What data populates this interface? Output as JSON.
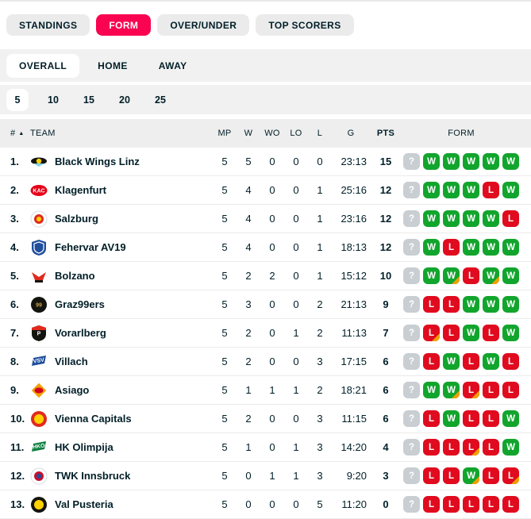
{
  "colors": {
    "accent": "#fa0350",
    "win": "#12a52d",
    "loss": "#e00b1e",
    "ot": "#f0a000",
    "unknown": "#c9ced3"
  },
  "main_tabs": [
    {
      "label": "STANDINGS",
      "active": false
    },
    {
      "label": "FORM",
      "active": true
    },
    {
      "label": "OVER/UNDER",
      "active": false
    },
    {
      "label": "TOP SCORERS",
      "active": false
    }
  ],
  "scope_tabs": [
    {
      "label": "OVERALL",
      "active": true
    },
    {
      "label": "HOME",
      "active": false
    },
    {
      "label": "AWAY",
      "active": false
    }
  ],
  "range_tabs": [
    {
      "label": "5",
      "active": true
    },
    {
      "label": "10",
      "active": false
    },
    {
      "label": "15",
      "active": false
    },
    {
      "label": "20",
      "active": false
    },
    {
      "label": "25",
      "active": false
    }
  ],
  "table": {
    "headers": {
      "rank": "#",
      "team": "TEAM",
      "mp": "MP",
      "w": "W",
      "wo": "WO",
      "lo": "LO",
      "l": "L",
      "g": "G",
      "pts": "PTS",
      "form": "FORM"
    },
    "sort_icon": "sort-asc-icon",
    "rows": [
      {
        "rank": "1.",
        "team": "Black Wings Linz",
        "mp": "5",
        "w": "5",
        "wo": "0",
        "lo": "0",
        "l": "0",
        "g": "23:13",
        "pts": "15",
        "logo": {
          "type": "wings",
          "colors": [
            "#14140f",
            "#ffd200",
            "#7fd4f0"
          ],
          "text": ""
        },
        "form": [
          {
            "r": "?"
          },
          {
            "r": "W"
          },
          {
            "r": "W"
          },
          {
            "r": "W"
          },
          {
            "r": "W"
          },
          {
            "r": "W"
          }
        ]
      },
      {
        "rank": "2.",
        "team": "Klagenfurt",
        "mp": "5",
        "w": "4",
        "wo": "0",
        "lo": "0",
        "l": "1",
        "g": "25:16",
        "pts": "12",
        "logo": {
          "type": "oval",
          "colors": [
            "#e60019",
            "#ffffff"
          ],
          "text": "KAC"
        },
        "form": [
          {
            "r": "?"
          },
          {
            "r": "W"
          },
          {
            "r": "W"
          },
          {
            "r": "W"
          },
          {
            "r": "L"
          },
          {
            "r": "W"
          }
        ]
      },
      {
        "rank": "3.",
        "team": "Salzburg",
        "mp": "5",
        "w": "4",
        "wo": "0",
        "lo": "0",
        "l": "1",
        "g": "23:16",
        "pts": "12",
        "logo": {
          "type": "circle",
          "colors": [
            "#ffffff",
            "#e02a1d",
            "#ffd200"
          ],
          "text": ""
        },
        "form": [
          {
            "r": "?"
          },
          {
            "r": "W"
          },
          {
            "r": "W"
          },
          {
            "r": "W"
          },
          {
            "r": "W"
          },
          {
            "r": "L"
          }
        ]
      },
      {
        "rank": "4.",
        "team": "Fehervar AV19",
        "mp": "5",
        "w": "4",
        "wo": "0",
        "lo": "0",
        "l": "1",
        "g": "18:13",
        "pts": "12",
        "logo": {
          "type": "shield",
          "colors": [
            "#1f4e9c",
            "#ffffff"
          ],
          "text": ""
        },
        "form": [
          {
            "r": "?"
          },
          {
            "r": "W"
          },
          {
            "r": "L"
          },
          {
            "r": "W"
          },
          {
            "r": "W"
          },
          {
            "r": "W"
          }
        ]
      },
      {
        "rank": "5.",
        "team": "Bolzano",
        "mp": "5",
        "w": "2",
        "wo": "2",
        "lo": "0",
        "l": "1",
        "g": "15:12",
        "pts": "10",
        "logo": {
          "type": "eagle",
          "colors": [
            "#e02a1d",
            "#14140f"
          ],
          "text": ""
        },
        "form": [
          {
            "r": "?"
          },
          {
            "r": "W"
          },
          {
            "r": "W",
            "ot": true
          },
          {
            "r": "L"
          },
          {
            "r": "W",
            "ot": true
          },
          {
            "r": "W"
          }
        ]
      },
      {
        "rank": "6.",
        "team": "Graz99ers",
        "mp": "5",
        "w": "3",
        "wo": "0",
        "lo": "0",
        "l": "2",
        "g": "21:13",
        "pts": "9",
        "logo": {
          "type": "circle",
          "colors": [
            "#14140f",
            "",
            ""
          ],
          "text": "99",
          "text_color": "#caa24a"
        },
        "form": [
          {
            "r": "?"
          },
          {
            "r": "L"
          },
          {
            "r": "L"
          },
          {
            "r": "W"
          },
          {
            "r": "W"
          },
          {
            "r": "W"
          }
        ]
      },
      {
        "rank": "7.",
        "team": "Vorarlberg",
        "mp": "5",
        "w": "2",
        "wo": "0",
        "lo": "1",
        "l": "2",
        "g": "11:13",
        "pts": "7",
        "logo": {
          "type": "shield",
          "colors": [
            "#14140f",
            "#ffffff"
          ],
          "text": "P",
          "stripe": "#e02a1d"
        },
        "form": [
          {
            "r": "?"
          },
          {
            "r": "L",
            "ot": true
          },
          {
            "r": "L"
          },
          {
            "r": "W"
          },
          {
            "r": "L"
          },
          {
            "r": "W"
          }
        ]
      },
      {
        "rank": "8.",
        "team": "Villach",
        "mp": "5",
        "w": "2",
        "wo": "0",
        "lo": "0",
        "l": "3",
        "g": "17:15",
        "pts": "6",
        "logo": {
          "type": "slant",
          "colors": [
            "#1f4e9c",
            "#ffffff"
          ],
          "text": "VSV"
        },
        "form": [
          {
            "r": "?"
          },
          {
            "r": "L"
          },
          {
            "r": "W"
          },
          {
            "r": "L"
          },
          {
            "r": "W"
          },
          {
            "r": "L"
          }
        ]
      },
      {
        "rank": "9.",
        "team": "Asiago",
        "mp": "5",
        "w": "1",
        "wo": "1",
        "lo": "1",
        "l": "2",
        "g": "18:21",
        "pts": "6",
        "logo": {
          "type": "diamond",
          "colors": [
            "#f2a007",
            "#d2001e"
          ],
          "text": ""
        },
        "form": [
          {
            "r": "?"
          },
          {
            "r": "W"
          },
          {
            "r": "W",
            "ot": true
          },
          {
            "r": "L",
            "ot": true
          },
          {
            "r": "L"
          },
          {
            "r": "L"
          }
        ]
      },
      {
        "rank": "10.",
        "team": "Vienna Capitals",
        "mp": "5",
        "w": "2",
        "wo": "0",
        "lo": "0",
        "l": "3",
        "g": "11:15",
        "pts": "6",
        "logo": {
          "type": "circle",
          "colors": [
            "#e02a1d",
            "#ffd200",
            ""
          ],
          "text": ""
        },
        "form": [
          {
            "r": "?"
          },
          {
            "r": "L"
          },
          {
            "r": "W"
          },
          {
            "r": "L"
          },
          {
            "r": "L"
          },
          {
            "r": "W"
          }
        ]
      },
      {
        "rank": "11.",
        "team": "HK Olimpija",
        "mp": "5",
        "w": "1",
        "wo": "0",
        "lo": "1",
        "l": "3",
        "g": "14:20",
        "pts": "4",
        "logo": {
          "type": "slant",
          "colors": [
            "#0b7d3e",
            "#ffffff"
          ],
          "text": "HKO"
        },
        "form": [
          {
            "r": "?"
          },
          {
            "r": "L"
          },
          {
            "r": "L"
          },
          {
            "r": "L",
            "ot": true
          },
          {
            "r": "L"
          },
          {
            "r": "W"
          }
        ]
      },
      {
        "rank": "12.",
        "team": "TWK Innsbruck",
        "mp": "5",
        "w": "0",
        "wo": "1",
        "lo": "1",
        "l": "3",
        "g": "9:20",
        "pts": "3",
        "logo": {
          "type": "circle",
          "colors": [
            "#ffffff",
            "#c8102e",
            "#1f4e9c"
          ],
          "text": ""
        },
        "form": [
          {
            "r": "?"
          },
          {
            "r": "L"
          },
          {
            "r": "L"
          },
          {
            "r": "W",
            "ot": true
          },
          {
            "r": "L"
          },
          {
            "r": "L",
            "ot": true
          }
        ]
      },
      {
        "rank": "13.",
        "team": "Val Pusteria",
        "mp": "5",
        "w": "0",
        "wo": "0",
        "lo": "0",
        "l": "5",
        "g": "11:20",
        "pts": "0",
        "logo": {
          "type": "circle",
          "colors": [
            "#14140f",
            "#ffd200",
            ""
          ],
          "text": ""
        },
        "form": [
          {
            "r": "?"
          },
          {
            "r": "L"
          },
          {
            "r": "L"
          },
          {
            "r": "L"
          },
          {
            "r": "L"
          },
          {
            "r": "L"
          }
        ]
      }
    ]
  }
}
